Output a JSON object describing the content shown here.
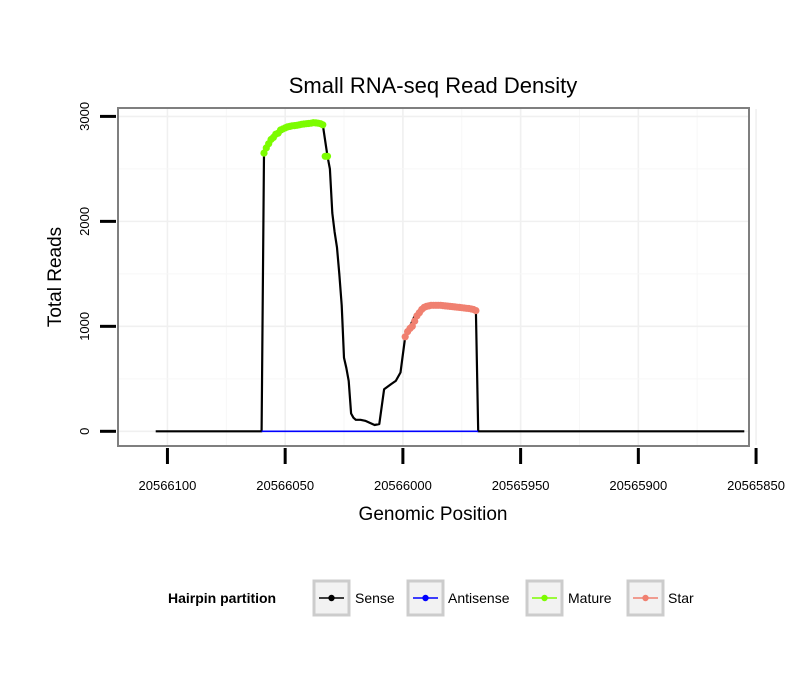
{
  "chart_data": {
    "type": "line",
    "title": "Small RNA-seq Read Density",
    "xlabel": "Genomic Position",
    "ylabel": "Total Reads",
    "x_reversed": true,
    "xlim": [
      20566121,
      20565853
    ],
    "ylim": [
      -140,
      3080
    ],
    "x_ticks": [
      20566100,
      20566050,
      20566000,
      20565950,
      20565900,
      20565850
    ],
    "x_tick_labels": [
      "20566100",
      "20566050",
      "20566000",
      "20565950",
      "20565900",
      "20565850"
    ],
    "y_ticks": [
      0,
      1000,
      2000,
      3000
    ],
    "y_tick_labels": [
      "0",
      "1000",
      "2000",
      "3000"
    ],
    "grid": true,
    "legend": {
      "title": "Hairpin partition",
      "position": "bottom",
      "entries": [
        {
          "label": "Sense",
          "color": "#000000"
        },
        {
          "label": "Antisense",
          "color": "#0000ff"
        },
        {
          "label": "Mature",
          "color": "#7cfc00"
        },
        {
          "label": "Star",
          "color": "#f08070"
        }
      ]
    },
    "series": [
      {
        "name": "Sense",
        "color": "#000000",
        "x": [
          20566105,
          20566060,
          20566059,
          20566058,
          20566056,
          20566053,
          20566050,
          20566047,
          20566045,
          20566042,
          20566040,
          20566038,
          20566036,
          20566034,
          20566032,
          20566031,
          20566030,
          20566029,
          20566028,
          20566027,
          20566026,
          20566025,
          20566024,
          20566023,
          20566022,
          20566021,
          20566020,
          20566018,
          20566016,
          20566014,
          20566012,
          20566010,
          20566008,
          20566005,
          20566003,
          20566001,
          20565999,
          20565998,
          20565997,
          20565995,
          20565993,
          20565991,
          20565990,
          20565989,
          20565988,
          20565986,
          20565984,
          20565982,
          20565980,
          20565978,
          20565976,
          20565974,
          20565972,
          20565970,
          20565969,
          20565968,
          20565967,
          20565855
        ],
        "y": [
          0,
          0,
          2650,
          2700,
          2780,
          2830,
          2870,
          2900,
          2910,
          2925,
          2930,
          2940,
          2935,
          2920,
          2620,
          2500,
          2080,
          1900,
          1750,
          1500,
          1200,
          700,
          600,
          480,
          170,
          130,
          110,
          110,
          100,
          80,
          60,
          70,
          400,
          450,
          480,
          560,
          900,
          950,
          1000,
          1100,
          1160,
          1190,
          1200,
          1200,
          1200,
          1200,
          1195,
          1190,
          1185,
          1180,
          1175,
          1170,
          1165,
          1160,
          1150,
          0,
          0,
          0
        ]
      },
      {
        "name": "Antisense",
        "color": "#0000ff",
        "x": [
          20566060,
          20565968
        ],
        "y": [
          0,
          0
        ]
      },
      {
        "name": "Mature",
        "color": "#7cfc00",
        "x": [
          20566059,
          20566058,
          20566057,
          20566056,
          20566055,
          20566054,
          20566053,
          20566052,
          20566051,
          20566050,
          20566049,
          20566048,
          20566047,
          20566046,
          20566045,
          20566044,
          20566043,
          20566042,
          20566041,
          20566040,
          20566039,
          20566038,
          20566037,
          20566036,
          20566035,
          20566034,
          20566033,
          20566032
        ],
        "y": [
          2650,
          2700,
          2740,
          2780,
          2800,
          2830,
          2840,
          2870,
          2880,
          2890,
          2900,
          2905,
          2910,
          2912,
          2915,
          2920,
          2925,
          2928,
          2930,
          2932,
          2935,
          2940,
          2938,
          2935,
          2930,
          2920,
          2620,
          2620
        ]
      },
      {
        "name": "Star",
        "color": "#f08070",
        "x": [
          20565999,
          20565998,
          20565997,
          20565996,
          20565995,
          20565994,
          20565993,
          20565992,
          20565991,
          20565990,
          20565989,
          20565988,
          20565987,
          20565986,
          20565985,
          20565984,
          20565983,
          20565982,
          20565981,
          20565980,
          20565979,
          20565978,
          20565977,
          20565976,
          20565975,
          20565974,
          20565973,
          20565972,
          20565971,
          20565970,
          20565969
        ],
        "y": [
          900,
          950,
          980,
          1000,
          1050,
          1100,
          1130,
          1160,
          1180,
          1190,
          1195,
          1200,
          1200,
          1200,
          1200,
          1200,
          1198,
          1195,
          1193,
          1190,
          1188,
          1185,
          1182,
          1180,
          1178,
          1175,
          1172,
          1170,
          1165,
          1160,
          1150
        ]
      }
    ]
  }
}
